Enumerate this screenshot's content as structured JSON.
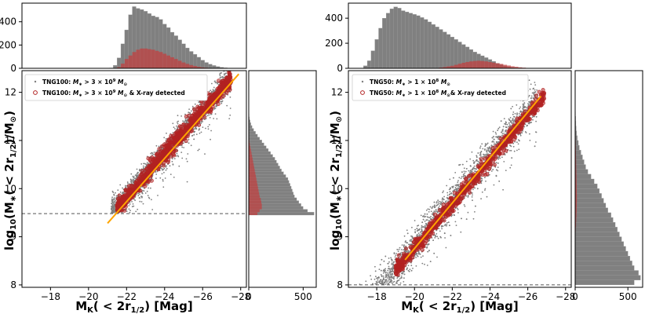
{
  "colors": {
    "all": "#7f7f7f",
    "xray": "#b22222",
    "fit": "#ffa500",
    "hist_all": "#808080",
    "hist_xray": "#c04040",
    "threshold": "#555555"
  },
  "chart_data": [
    {
      "type": "scatter",
      "id": "tng100",
      "xlabel": "M_K(<2r_1/2) [Mag]",
      "ylabel": "log10(M*(<2r_1/2)/M_sun)",
      "xlim": [
        -16.5,
        -28.3
      ],
      "ylim": [
        7.95,
        12.45
      ],
      "xticks": [
        -18,
        -20,
        -22,
        -24,
        -26,
        -28
      ],
      "yticks": [
        8,
        9,
        10,
        11,
        12
      ],
      "threshold_logM": 9.48,
      "legend": {
        "position": "top-left",
        "entries": [
          "TNG100: M* > 3 × 10^9 M_sun",
          "TNG100: M* > 3 × 10^9 M_sun & X-ray detected"
        ]
      },
      "fit_line": {
        "x": [
          -21.0,
          -27.9
        ],
        "y": [
          9.28,
          12.38
        ]
      },
      "all_band": {
        "mk_range": [
          -21.2,
          -27.5
        ],
        "relation": "logM = 9.4 - 0.45*(MK+21)",
        "scatter_dex": 0.13,
        "n": 2600
      },
      "xray_band": {
        "mk_range": [
          -21.5,
          -27.5
        ],
        "relation": "logM = 9.5 - 0.45*(MK+21.3)",
        "scatter_dex": 0.09,
        "n": 900
      },
      "top_hist": {
        "ylim": [
          0,
          560
        ],
        "yticks": [
          0,
          200,
          400
        ],
        "bin_start": -16.5,
        "bin_width": -0.2,
        "all": [
          0,
          0,
          0,
          0,
          0,
          0,
          0,
          0,
          0,
          0,
          0,
          0,
          0,
          0,
          0,
          0,
          0,
          0,
          0,
          0,
          0,
          0,
          0,
          3,
          25,
          90,
          210,
          330,
          460,
          530,
          515,
          505,
          490,
          470,
          450,
          440,
          420,
          380,
          350,
          310,
          280,
          245,
          210,
          175,
          145,
          120,
          95,
          70,
          50,
          35,
          24,
          15,
          8,
          4,
          2,
          1,
          0,
          0,
          0,
          0
        ],
        "xray": [
          0,
          0,
          0,
          0,
          0,
          0,
          0,
          0,
          0,
          0,
          0,
          0,
          0,
          0,
          0,
          0,
          0,
          0,
          0,
          0,
          0,
          0,
          0,
          0,
          0,
          10,
          40,
          80,
          110,
          140,
          160,
          170,
          170,
          165,
          160,
          150,
          140,
          125,
          110,
          95,
          80,
          65,
          50,
          38,
          28,
          20,
          13,
          8,
          5,
          3,
          1,
          0,
          0,
          0,
          0,
          0,
          0,
          0,
          0,
          0
        ]
      },
      "side_hist": {
        "xlim": [
          0,
          620
        ],
        "xticks": [
          0,
          500
        ],
        "bin_start": 9.45,
        "bin_width": 0.06,
        "all": [
          600,
          540,
          500,
          480,
          460,
          440,
          420,
          410,
          400,
          390,
          380,
          370,
          360,
          340,
          320,
          300,
          285,
          270,
          255,
          240,
          220,
          200,
          180,
          160,
          140,
          120,
          100,
          80,
          62,
          45,
          30,
          20,
          12,
          6,
          3,
          1,
          0
        ],
        "xray": [
          80,
          100,
          120,
          120,
          115,
          110,
          100,
          95,
          90,
          85,
          80,
          75,
          70,
          65,
          60,
          55,
          50,
          45,
          40,
          35,
          30,
          25,
          20,
          15,
          10,
          6,
          4,
          2,
          1,
          0,
          0,
          0,
          0,
          0,
          0,
          0,
          0
        ]
      }
    },
    {
      "type": "scatter",
      "id": "tng50",
      "xlabel": "M_K(<2r_1/2) [Mag]",
      "ylabel": "log10(M*(<2r_1/2)/M_sun)",
      "xlim": [
        -16.5,
        -28.3
      ],
      "ylim": [
        7.95,
        12.45
      ],
      "xticks": [
        -18,
        -20,
        -22,
        -24,
        -26,
        -28
      ],
      "yticks": [
        8,
        9,
        10,
        11,
        12
      ],
      "threshold_logM": 8.0,
      "legend": {
        "position": "top-left",
        "entries": [
          "TNG50: M* > 1 × 10^8 M_sun",
          "TNG50: M* > 1 × 10^8 M_sun & X-ray detected"
        ]
      },
      "fit_line": {
        "x": [
          -19.5,
          -26.7
        ],
        "y": [
          8.52,
          11.92
        ]
      },
      "all_band": {
        "mk_range": [
          -16.8,
          -26.5
        ],
        "relation": "logM = 7.2 - 0.465*(MK+16.5)",
        "scatter_dex": 0.18,
        "n": 3200
      },
      "xray_band": {
        "mk_range": [
          -19.0,
          -26.9
        ],
        "relation": "logM = 8.3 - 0.46*(MK+19)",
        "scatter_dex": 0.08,
        "n": 800
      },
      "top_hist": {
        "ylim": [
          0,
          520
        ],
        "yticks": [
          0,
          200,
          400
        ],
        "bin_start": -16.5,
        "bin_width": -0.2,
        "all": [
          0,
          0,
          0,
          0,
          20,
          60,
          140,
          230,
          320,
          400,
          440,
          475,
          490,
          480,
          460,
          450,
          440,
          430,
          420,
          405,
          390,
          370,
          350,
          330,
          310,
          290,
          270,
          250,
          230,
          210,
          190,
          170,
          150,
          130,
          115,
          100,
          85,
          70,
          55,
          40,
          28,
          18,
          10,
          5,
          2,
          1,
          0,
          0,
          0,
          0,
          0,
          0,
          0,
          0,
          0,
          0,
          0,
          0,
          0,
          0
        ],
        "xray": [
          0,
          0,
          0,
          0,
          0,
          0,
          0,
          0,
          0,
          0,
          0,
          0,
          0,
          0,
          0,
          0,
          0,
          0,
          0,
          0,
          0,
          0,
          1,
          3,
          6,
          10,
          15,
          20,
          28,
          36,
          44,
          50,
          55,
          58,
          60,
          58,
          55,
          50,
          45,
          40,
          35,
          28,
          22,
          16,
          12,
          8,
          5,
          3,
          2,
          1,
          0,
          0,
          0,
          0,
          0,
          0,
          0,
          0,
          0,
          0
        ]
      },
      "side_hist": {
        "xlim": [
          0,
          640
        ],
        "xticks": [
          0,
          500
        ],
        "bin_start": 8.0,
        "bin_width": 0.1,
        "all": [
          560,
          620,
          600,
          560,
          540,
          520,
          500,
          480,
          460,
          440,
          420,
          400,
          380,
          360,
          340,
          310,
          290,
          270,
          250,
          230,
          210,
          180,
          150,
          120,
          100,
          85,
          70,
          55,
          40,
          30,
          20,
          14,
          10,
          7,
          5,
          3,
          2,
          1,
          0,
          0,
          0,
          0,
          0
        ],
        "xray": [
          0,
          0,
          0,
          0,
          0,
          0,
          0,
          0,
          0,
          1,
          2,
          5,
          8,
          10,
          12,
          14,
          15,
          16,
          16,
          15,
          14,
          13,
          12,
          11,
          10,
          9,
          8,
          7,
          6,
          5,
          4,
          3,
          2,
          1,
          1,
          0,
          0,
          0,
          0,
          0,
          0,
          0,
          0
        ]
      }
    }
  ]
}
